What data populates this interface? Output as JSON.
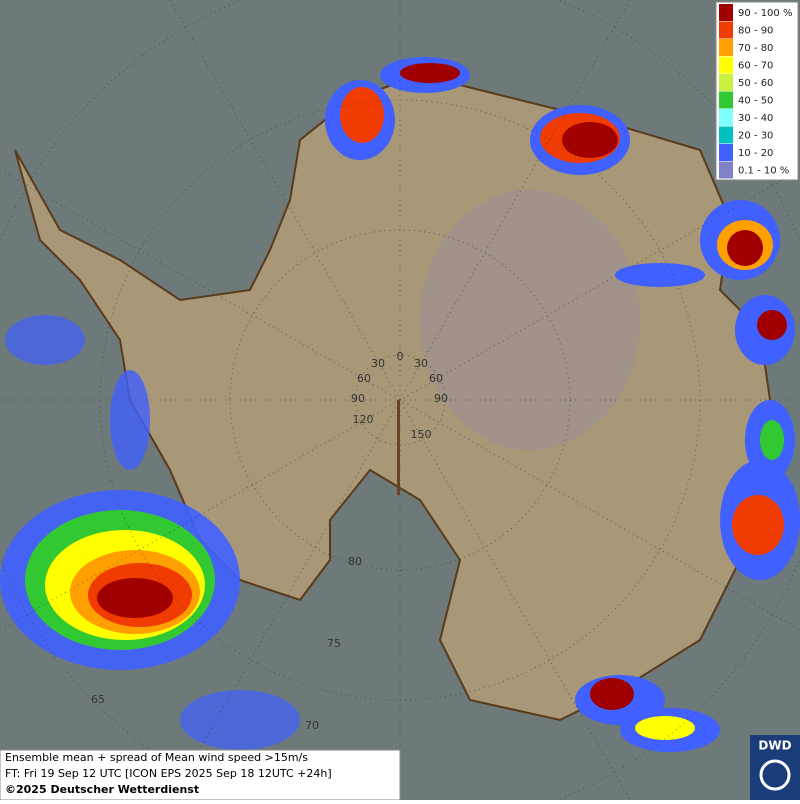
{
  "map": {
    "legend": [
      {
        "label": "90 - 100 %",
        "color": "#a00000"
      },
      {
        "label": "80 - 90",
        "color": "#f03c00"
      },
      {
        "label": "70 - 80",
        "color": "#ffa000"
      },
      {
        "label": "60 - 70",
        "color": "#ffff00"
      },
      {
        "label": "50 - 60",
        "color": "#c8f03c"
      },
      {
        "label": "40 - 50",
        "color": "#32c832"
      },
      {
        "label": "30 - 40",
        "color": "#80ffff"
      },
      {
        "label": "20 - 30",
        "color": "#00c0c0"
      },
      {
        "label": "10 - 20",
        "color": "#4060ff"
      },
      {
        "label": "0.1 - 10 %",
        "color": "#8080c8"
      }
    ],
    "labels": [
      "0",
      "30",
      "30",
      "60",
      "60",
      "90",
      "90",
      "120",
      "150",
      "80",
      "75",
      "70",
      "65"
    ],
    "caption": [
      "Ensemble mean + spread of Mean wind speed >15m/s",
      "FT: Fri 19 Sep 12 UTC [ICON EPS 2025 Sep 18 12UTC +24h]",
      "©2025 Deutscher Wetterdienst"
    ],
    "logo": "DWD"
  }
}
